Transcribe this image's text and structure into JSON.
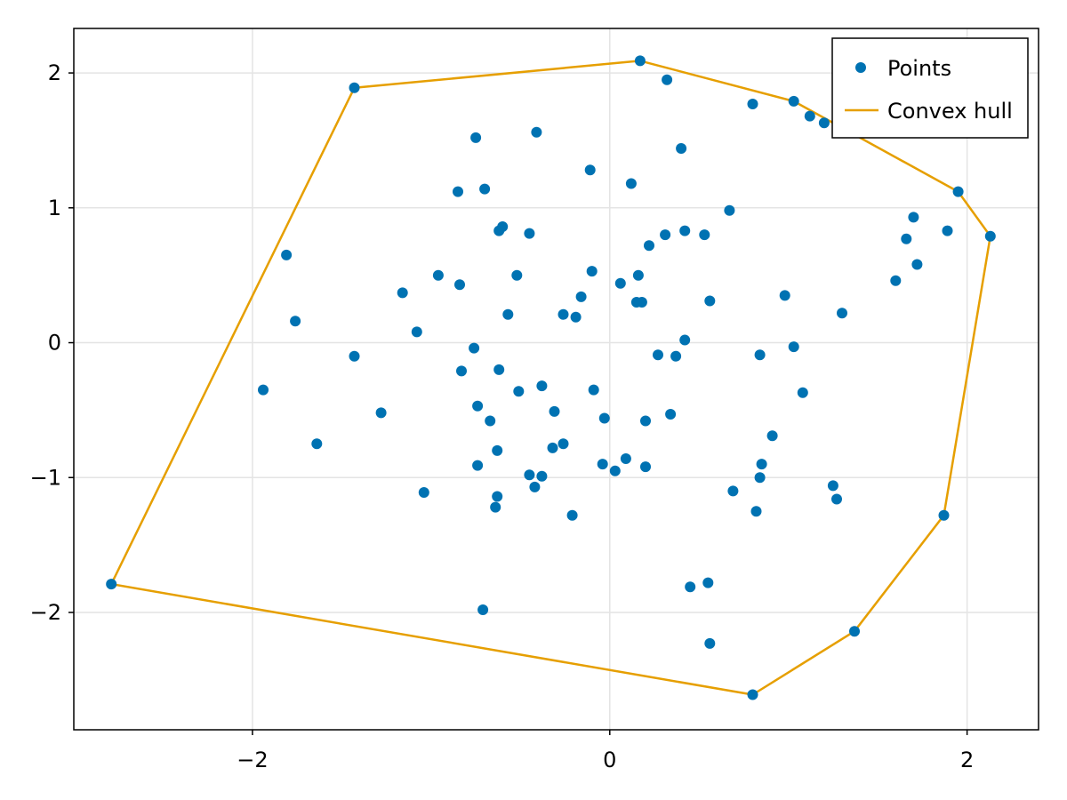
{
  "chart_data": {
    "type": "scatter",
    "xlim": [
      -3.0,
      2.4
    ],
    "ylim": [
      -2.87,
      2.33
    ],
    "grid": true,
    "legend_position": "top-right",
    "x_ticks": [
      -2,
      0,
      2
    ],
    "y_ticks": [
      -2,
      -1,
      0,
      1,
      2
    ],
    "x_tick_labels": [
      "−2",
      "0",
      "2"
    ],
    "y_tick_labels": [
      "−2",
      "−1",
      "0",
      "1",
      "2"
    ],
    "colors": {
      "points": "#0072b2",
      "hull": "#e69f00"
    },
    "series": [
      {
        "name": "Points",
        "kind": "scatter",
        "color": "#0072b2",
        "points": [
          [
            0.17,
            2.09
          ],
          [
            -1.43,
            1.89
          ],
          [
            0.32,
            1.95
          ],
          [
            0.8,
            1.77
          ],
          [
            1.03,
            1.79
          ],
          [
            1.12,
            1.68
          ],
          [
            1.2,
            1.63
          ],
          [
            1.95,
            1.12
          ],
          [
            2.13,
            0.79
          ],
          [
            -0.75,
            1.52
          ],
          [
            -0.41,
            1.56
          ],
          [
            0.4,
            1.44
          ],
          [
            -0.11,
            1.28
          ],
          [
            0.12,
            1.18
          ],
          [
            -0.85,
            1.12
          ],
          [
            -0.7,
            1.14
          ],
          [
            0.67,
            0.98
          ],
          [
            1.7,
            0.93
          ],
          [
            1.89,
            0.83
          ],
          [
            1.66,
            0.77
          ],
          [
            -0.6,
            0.86
          ],
          [
            -0.62,
            0.83
          ],
          [
            -0.45,
            0.81
          ],
          [
            0.31,
            0.8
          ],
          [
            0.42,
            0.83
          ],
          [
            0.53,
            0.8
          ],
          [
            0.22,
            0.72
          ],
          [
            1.72,
            0.58
          ],
          [
            -1.81,
            0.65
          ],
          [
            -0.96,
            0.5
          ],
          [
            -0.84,
            0.43
          ],
          [
            -0.52,
            0.5
          ],
          [
            -0.1,
            0.53
          ],
          [
            0.06,
            0.44
          ],
          [
            0.16,
            0.5
          ],
          [
            1.6,
            0.46
          ],
          [
            -1.16,
            0.37
          ],
          [
            -0.16,
            0.34
          ],
          [
            0.98,
            0.35
          ],
          [
            0.15,
            0.3
          ],
          [
            0.18,
            0.3
          ],
          [
            0.56,
            0.31
          ],
          [
            -1.76,
            0.16
          ],
          [
            -0.57,
            0.21
          ],
          [
            -0.26,
            0.21
          ],
          [
            -0.19,
            0.19
          ],
          [
            1.3,
            0.22
          ],
          [
            -1.08,
            0.08
          ],
          [
            0.42,
            0.02
          ],
          [
            1.03,
            -0.03
          ],
          [
            -0.76,
            -0.04
          ],
          [
            -1.43,
            -0.1
          ],
          [
            0.27,
            -0.09
          ],
          [
            0.37,
            -0.1
          ],
          [
            0.84,
            -0.09
          ],
          [
            -0.83,
            -0.21
          ],
          [
            -0.62,
            -0.2
          ],
          [
            -1.94,
            -0.35
          ],
          [
            -0.51,
            -0.36
          ],
          [
            -0.38,
            -0.32
          ],
          [
            -0.09,
            -0.35
          ],
          [
            1.08,
            -0.37
          ],
          [
            -0.74,
            -0.47
          ],
          [
            -1.28,
            -0.52
          ],
          [
            -0.31,
            -0.51
          ],
          [
            -0.67,
            -0.58
          ],
          [
            -0.03,
            -0.56
          ],
          [
            0.2,
            -0.58
          ],
          [
            0.34,
            -0.53
          ],
          [
            0.91,
            -0.69
          ],
          [
            -1.64,
            -0.75
          ],
          [
            -0.32,
            -0.78
          ],
          [
            -0.26,
            -0.75
          ],
          [
            -0.63,
            -0.8
          ],
          [
            -0.74,
            -0.91
          ],
          [
            -0.04,
            -0.9
          ],
          [
            0.09,
            -0.86
          ],
          [
            0.85,
            -0.9
          ],
          [
            0.03,
            -0.95
          ],
          [
            0.2,
            -0.92
          ],
          [
            -0.45,
            -0.98
          ],
          [
            -0.38,
            -0.99
          ],
          [
            0.84,
            -1.0
          ],
          [
            -0.42,
            -1.07
          ],
          [
            -1.04,
            -1.11
          ],
          [
            -0.63,
            -1.14
          ],
          [
            0.69,
            -1.1
          ],
          [
            1.25,
            -1.06
          ],
          [
            1.27,
            -1.16
          ],
          [
            -0.64,
            -1.22
          ],
          [
            -0.21,
            -1.28
          ],
          [
            0.82,
            -1.25
          ],
          [
            1.87,
            -1.28
          ],
          [
            0.55,
            -1.78
          ],
          [
            0.45,
            -1.81
          ],
          [
            -0.71,
            -1.98
          ],
          [
            1.37,
            -2.14
          ],
          [
            0.56,
            -2.23
          ],
          [
            -2.79,
            -1.79
          ],
          [
            0.8,
            -2.61
          ]
        ]
      },
      {
        "name": "Convex hull",
        "kind": "line",
        "color": "#e69f00",
        "points": [
          [
            -2.79,
            -1.79
          ],
          [
            -1.43,
            1.89
          ],
          [
            0.17,
            2.09
          ],
          [
            1.03,
            1.79
          ],
          [
            1.95,
            1.12
          ],
          [
            2.13,
            0.79
          ],
          [
            1.87,
            -1.28
          ],
          [
            1.37,
            -2.14
          ],
          [
            0.8,
            -2.61
          ],
          [
            -2.79,
            -1.79
          ]
        ]
      }
    ]
  }
}
